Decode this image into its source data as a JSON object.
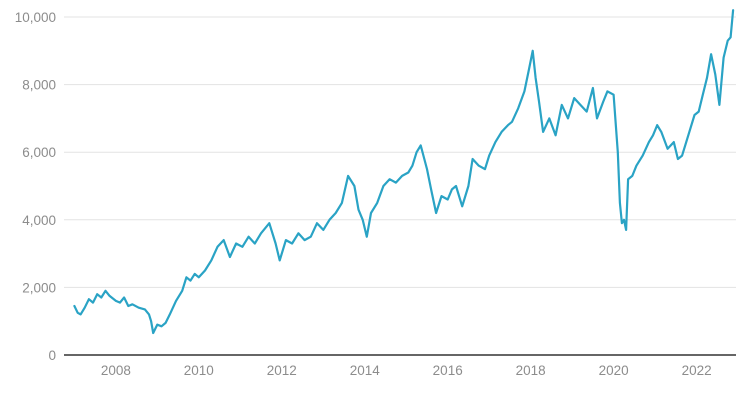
{
  "chart_data": {
    "type": "line",
    "title": "",
    "xlabel": "",
    "ylabel": "",
    "xlim": [
      2006.75,
      2022.95
    ],
    "ylim": [
      0,
      10000
    ],
    "grid": true,
    "x_ticks": [
      2008,
      2010,
      2012,
      2014,
      2016,
      2018,
      2020,
      2022
    ],
    "x_tick_labels": [
      "2008",
      "2010",
      "2012",
      "2014",
      "2016",
      "2018",
      "2020",
      "2022"
    ],
    "y_ticks": [
      0,
      2000,
      4000,
      6000,
      8000,
      10000
    ],
    "y_tick_labels": [
      "0",
      "2,000",
      "4,000",
      "6,000",
      "8,000",
      "10,000"
    ],
    "colors": {
      "series": "#2aa3c5"
    },
    "series": [
      {
        "x": [
          2007.0,
          2007.08,
          2007.15,
          2007.25,
          2007.35,
          2007.45,
          2007.55,
          2007.65,
          2007.75,
          2007.85,
          2008.0,
          2008.1,
          2008.2,
          2008.3,
          2008.4,
          2008.55,
          2008.7,
          2008.8,
          2008.85,
          2008.9,
          2009.0,
          2009.1,
          2009.2,
          2009.3,
          2009.45,
          2009.6,
          2009.7,
          2009.8,
          2009.9,
          2010.0,
          2010.15,
          2010.3,
          2010.45,
          2010.6,
          2010.75,
          2010.9,
          2011.05,
          2011.2,
          2011.35,
          2011.5,
          2011.7,
          2011.85,
          2011.95,
          2012.1,
          2012.25,
          2012.4,
          2012.55,
          2012.7,
          2012.85,
          2013.0,
          2013.15,
          2013.3,
          2013.45,
          2013.6,
          2013.75,
          2013.85,
          2013.95,
          2014.05,
          2014.15,
          2014.3,
          2014.45,
          2014.6,
          2014.75,
          2014.9,
          2015.05,
          2015.15,
          2015.25,
          2015.35,
          2015.5,
          2015.6,
          2015.72,
          2015.85,
          2016.0,
          2016.1,
          2016.2,
          2016.35,
          2016.5,
          2016.6,
          2016.75,
          2016.9,
          2017.0,
          2017.15,
          2017.3,
          2017.45,
          2017.55,
          2017.7,
          2017.85,
          2017.95,
          2018.05,
          2018.12,
          2018.2,
          2018.3,
          2018.45,
          2018.6,
          2018.75,
          2018.9,
          2019.05,
          2019.2,
          2019.35,
          2019.5,
          2019.6,
          2019.75,
          2019.85,
          2020.0,
          2020.1,
          2020.15,
          2020.2,
          2020.25,
          2020.3,
          2020.35,
          2020.45,
          2020.55,
          2020.7,
          2020.85,
          2020.95,
          2021.05,
          2021.15,
          2021.3,
          2021.45,
          2021.55,
          2021.65,
          2021.8,
          2021.95,
          2022.05,
          2022.15,
          2022.25,
          2022.35,
          2022.45,
          2022.55,
          2022.65,
          2022.75,
          2022.82,
          2022.88
        ],
        "y": [
          1450,
          1250,
          1200,
          1400,
          1650,
          1550,
          1800,
          1700,
          1900,
          1750,
          1600,
          1550,
          1700,
          1450,
          1500,
          1400,
          1350,
          1200,
          1000,
          650,
          900,
          850,
          950,
          1200,
          1600,
          1900,
          2300,
          2200,
          2400,
          2300,
          2500,
          2800,
          3200,
          3400,
          2900,
          3300,
          3200,
          3500,
          3300,
          3600,
          3900,
          3300,
          2800,
          3400,
          3300,
          3600,
          3400,
          3500,
          3900,
          3700,
          4000,
          4200,
          4500,
          5300,
          5000,
          4300,
          4000,
          3500,
          4200,
          4500,
          5000,
          5200,
          5100,
          5300,
          5400,
          5600,
          6000,
          6200,
          5500,
          4900,
          4200,
          4700,
          4600,
          4900,
          5000,
          4400,
          5000,
          5800,
          5600,
          5500,
          5900,
          6300,
          6600,
          6800,
          6900,
          7300,
          7800,
          8400,
          9000,
          8200,
          7500,
          6600,
          7000,
          6500,
          7400,
          7000,
          7600,
          7400,
          7200,
          7900,
          7000,
          7500,
          7800,
          7700,
          6000,
          4500,
          3900,
          4000,
          3700,
          5200,
          5300,
          5600,
          5900,
          6300,
          6500,
          6800,
          6600,
          6100,
          6300,
          5800,
          5900,
          6500,
          7100,
          7200,
          7700,
          8200,
          8900,
          8300,
          7400,
          8800,
          9300,
          9400,
          10200
        ]
      }
    ]
  }
}
